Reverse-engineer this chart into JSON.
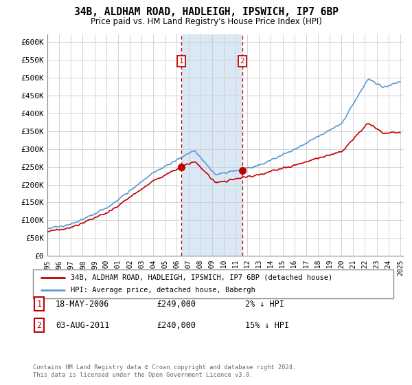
{
  "title": "34B, ALDHAM ROAD, HADLEIGH, IPSWICH, IP7 6BP",
  "subtitle": "Price paid vs. HM Land Registry's House Price Index (HPI)",
  "ylim": [
    0,
    620000
  ],
  "yticks": [
    0,
    50000,
    100000,
    150000,
    200000,
    250000,
    300000,
    350000,
    400000,
    450000,
    500000,
    550000,
    600000
  ],
  "ytick_labels": [
    "£0",
    "£50K",
    "£100K",
    "£150K",
    "£200K",
    "£250K",
    "£300K",
    "£350K",
    "£400K",
    "£450K",
    "£500K",
    "£550K",
    "£600K"
  ],
  "purchase1_year": 2006.38,
  "purchase1_price": 249000,
  "purchase1_label": "1",
  "purchase1_date": "18-MAY-2006",
  "purchase1_price_str": "£249,000",
  "purchase1_hpi_diff": "2% ↓ HPI",
  "purchase2_year": 2011.58,
  "purchase2_price": 240000,
  "purchase2_label": "2",
  "purchase2_date": "03-AUG-2011",
  "purchase2_price_str": "£240,000",
  "purchase2_hpi_diff": "15% ↓ HPI",
  "hpi_color": "#5b9bd5",
  "property_color": "#c00000",
  "shade_color": "#dae8f5",
  "marker_color": "#c00000",
  "legend_entry1": "34B, ALDHAM ROAD, HADLEIGH, IPSWICH, IP7 6BP (detached house)",
  "legend_entry2": "HPI: Average price, detached house, Babergh",
  "footer1": "Contains HM Land Registry data © Crown copyright and database right 2024.",
  "footer2": "This data is licensed under the Open Government Licence v3.0.",
  "background_color": "#ffffff",
  "grid_color": "#cccccc"
}
